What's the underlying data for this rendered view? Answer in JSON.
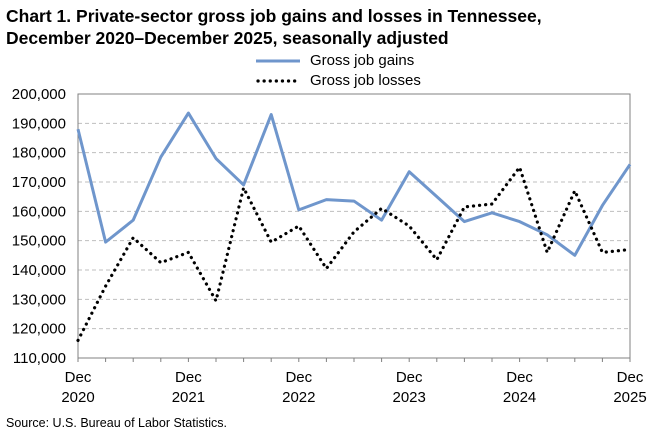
{
  "title_line1": "Chart 1. Private-sector gross job gains and losses in Tennessee,",
  "title_line2": "December 2020–December 2025, seasonally adjusted",
  "source": "Source: U.S. Bureau of Labor Statistics.",
  "colors": {
    "gains": "#6f96cc",
    "losses": "#000000",
    "grid": "#bfbfbf",
    "axis": "#808080"
  },
  "chart_data": {
    "type": "line",
    "x": [
      "Dec 2020",
      "Mar 2021",
      "Jun 2021",
      "Sep 2021",
      "Dec 2021",
      "Mar 2022",
      "Jun 2022",
      "Sep 2022",
      "Dec 2022",
      "Mar 2023",
      "Jun 2023",
      "Sep 2023",
      "Dec 2023",
      "Mar 2024",
      "Jun 2024",
      "Sep 2024",
      "Dec 2024",
      "Mar 2025",
      "Jun 2025",
      "Sep 2025",
      "Dec 2025"
    ],
    "series": [
      {
        "name": "Gross job gains",
        "style": "solid",
        "values": [
          188000,
          149500,
          157000,
          178500,
          193500,
          178000,
          169000,
          193000,
          160500,
          164000,
          163500,
          157000,
          173500,
          165000,
          156500,
          159500,
          156500,
          152000,
          145000,
          162000,
          176000
        ]
      },
      {
        "name": "Gross job losses",
        "style": "dotted",
        "values": [
          116000,
          134500,
          151000,
          142500,
          146000,
          129500,
          168000,
          149500,
          155000,
          140500,
          153000,
          161000,
          155000,
          143500,
          161500,
          162500,
          175000,
          146000,
          167000,
          146000,
          147000
        ]
      }
    ],
    "xtick_labels": [
      {
        "month": "Dec",
        "year": "2020"
      },
      {
        "month": "Dec",
        "year": "2021"
      },
      {
        "month": "Dec",
        "year": "2022"
      },
      {
        "month": "Dec",
        "year": "2023"
      },
      {
        "month": "Dec",
        "year": "2024"
      },
      {
        "month": "Dec",
        "year": "2025"
      }
    ],
    "yticks": [
      "110,000",
      "120,000",
      "130,000",
      "140,000",
      "150,000",
      "160,000",
      "170,000",
      "180,000",
      "190,000",
      "200,000"
    ],
    "ylim": [
      110000,
      200000
    ],
    "grid": true,
    "legend_position": "top-center"
  }
}
